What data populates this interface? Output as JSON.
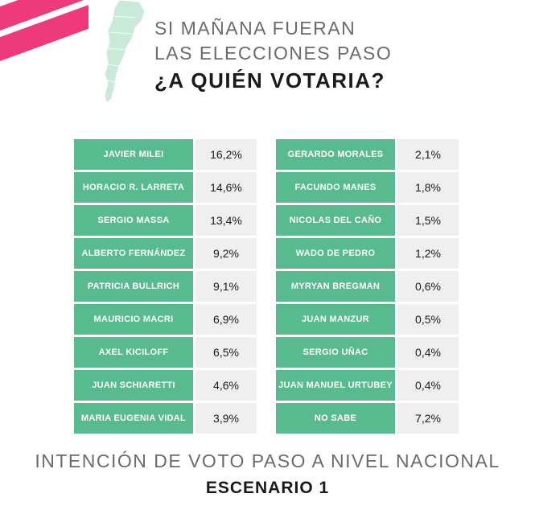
{
  "header": {
    "line1": "SI MAÑANA FUERAN",
    "line2": "LAS ELECCIONES PASO",
    "line3": "¿A QUIÉN VOTARIA?"
  },
  "footer": {
    "line1": "INTENCIÓN DE VOTO PASO A NIVEL NACIONAL",
    "line2": "ESCENARIO 1"
  },
  "colors": {
    "accent": "#58ba8f",
    "stripe": "#ee3a7a",
    "cell": "#efefef"
  },
  "chart_data": {
    "type": "table",
    "title": "INTENCIÓN DE VOTO PASO A NIVEL NACIONAL - ESCENARIO 1",
    "columns": [
      {
        "rows": [
          {
            "name": "JAVIER MILEI",
            "value": "16,2%"
          },
          {
            "name": "HORACIO R. LARRETA",
            "value": "14,6%"
          },
          {
            "name": "SERGIO MASSA",
            "value": "13,4%"
          },
          {
            "name": "ALBERTO FERNÁNDEZ",
            "value": "9,2%"
          },
          {
            "name": "PATRICIA BULLRICH",
            "value": "9,1%"
          },
          {
            "name": "MAURICIO MACRI",
            "value": "6,9%"
          },
          {
            "name": "AXEL KICILOFF",
            "value": "6,5%"
          },
          {
            "name": "JUAN SCHIARETTI",
            "value": "4,6%"
          },
          {
            "name": "MARIA EUGENIA VIDAL",
            "value": "3,9%"
          }
        ]
      },
      {
        "rows": [
          {
            "name": "GERARDO MORALES",
            "value": "2,1%"
          },
          {
            "name": "FACUNDO MANES",
            "value": "1,8%"
          },
          {
            "name": "NICOLAS DEL CAÑO",
            "value": "1,5%"
          },
          {
            "name": "WADO DE PEDRO",
            "value": "1,2%"
          },
          {
            "name": "MYRYAN BREGMAN",
            "value": "0,6%"
          },
          {
            "name": "JUAN MANZUR",
            "value": "0,5%"
          },
          {
            "name": "SERGIO UÑAC",
            "value": "0,4%"
          },
          {
            "name": "JUAN MANUEL URTUBEY",
            "value": "0,4%"
          },
          {
            "name": "NO SABE",
            "value": "7,2%"
          }
        ]
      }
    ]
  }
}
